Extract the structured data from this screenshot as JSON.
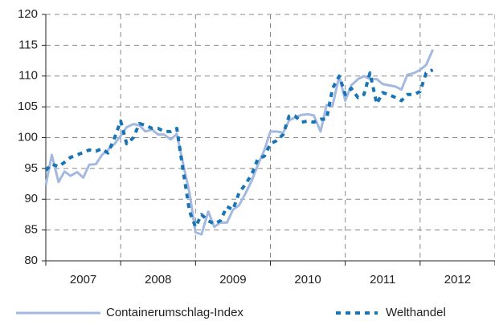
{
  "chart_data": {
    "type": "line",
    "x": [
      2007,
      2007.08,
      2007.17,
      2007.25,
      2007.33,
      2007.42,
      2007.5,
      2007.58,
      2007.67,
      2007.75,
      2007.83,
      2007.92,
      2008,
      2008.08,
      2008.17,
      2008.25,
      2008.33,
      2008.42,
      2008.5,
      2008.58,
      2008.67,
      2008.75,
      2008.83,
      2008.92,
      2009,
      2009.08,
      2009.17,
      2009.25,
      2009.33,
      2009.42,
      2009.5,
      2009.58,
      2009.67,
      2009.75,
      2009.83,
      2009.92,
      2010,
      2010.08,
      2010.17,
      2010.25,
      2010.33,
      2010.42,
      2010.5,
      2010.58,
      2010.67,
      2010.75,
      2010.83,
      2010.92,
      2011,
      2011.08,
      2011.17,
      2011.25,
      2011.33,
      2011.42,
      2011.5,
      2011.58,
      2011.67,
      2011.75,
      2011.83,
      2011.92,
      2012,
      2012.08,
      2012.17
    ],
    "x_labels": [
      "2007",
      "2008",
      "2009",
      "2010",
      "2011",
      "2012"
    ],
    "series": [
      {
        "name": "Containerumschlag-Index",
        "color": "#a3b9e0",
        "style": "solid",
        "values": [
          92.3,
          97.2,
          92.8,
          94.5,
          93.8,
          94.4,
          93.5,
          95.6,
          95.7,
          97.2,
          98.0,
          99.0,
          100.3,
          101.7,
          102.2,
          102.0,
          101.0,
          101.3,
          100.5,
          100.5,
          99.7,
          100.6,
          96.0,
          91.0,
          84.6,
          84.3,
          88.0,
          85.5,
          86.2,
          86.2,
          88.3,
          89.0,
          91.0,
          93.0,
          95.5,
          98.0,
          101.0,
          101.0,
          100.8,
          102.8,
          103.3,
          103.7,
          103.8,
          103.6,
          101.0,
          105.3,
          105.2,
          110.0,
          106.0,
          108.5,
          109.5,
          110.0,
          109.5,
          109.5,
          108.7,
          108.5,
          108.3,
          107.8,
          110.2,
          110.5,
          111.0,
          111.8,
          114.3
        ]
      },
      {
        "name": "Welthandel",
        "color": "#1874b4",
        "style": "dotted",
        "values": [
          94.7,
          95.7,
          95.3,
          96.0,
          96.8,
          97.2,
          97.6,
          98.0,
          97.8,
          98.2,
          97.5,
          100.0,
          102.7,
          99.0,
          100.0,
          102.3,
          102.0,
          101.5,
          101.5,
          101.0,
          101.0,
          101.5,
          95.0,
          88.0,
          85.5,
          87.5,
          86.5,
          86.0,
          86.5,
          88.8,
          88.3,
          91.0,
          92.5,
          94.0,
          96.5,
          97.0,
          99.0,
          99.5,
          100.5,
          103.5,
          103.5,
          102.5,
          102.7,
          102.5,
          103.0,
          103.0,
          108.0,
          110.0,
          107.0,
          108.0,
          106.5,
          107.0,
          110.5,
          105.5,
          107.3,
          107.0,
          106.5,
          106.0,
          107.0,
          107.0,
          107.5,
          110.5,
          111.0
        ]
      }
    ],
    "xlim": [
      2007,
      2013
    ],
    "xticks": [
      2007,
      2008,
      2009,
      2010,
      2011,
      2012,
      2013
    ],
    "ylim": [
      80,
      120
    ],
    "yticks": [
      80,
      85,
      90,
      95,
      100,
      105,
      110,
      115,
      120
    ],
    "grid": true,
    "legend": "bottom"
  }
}
